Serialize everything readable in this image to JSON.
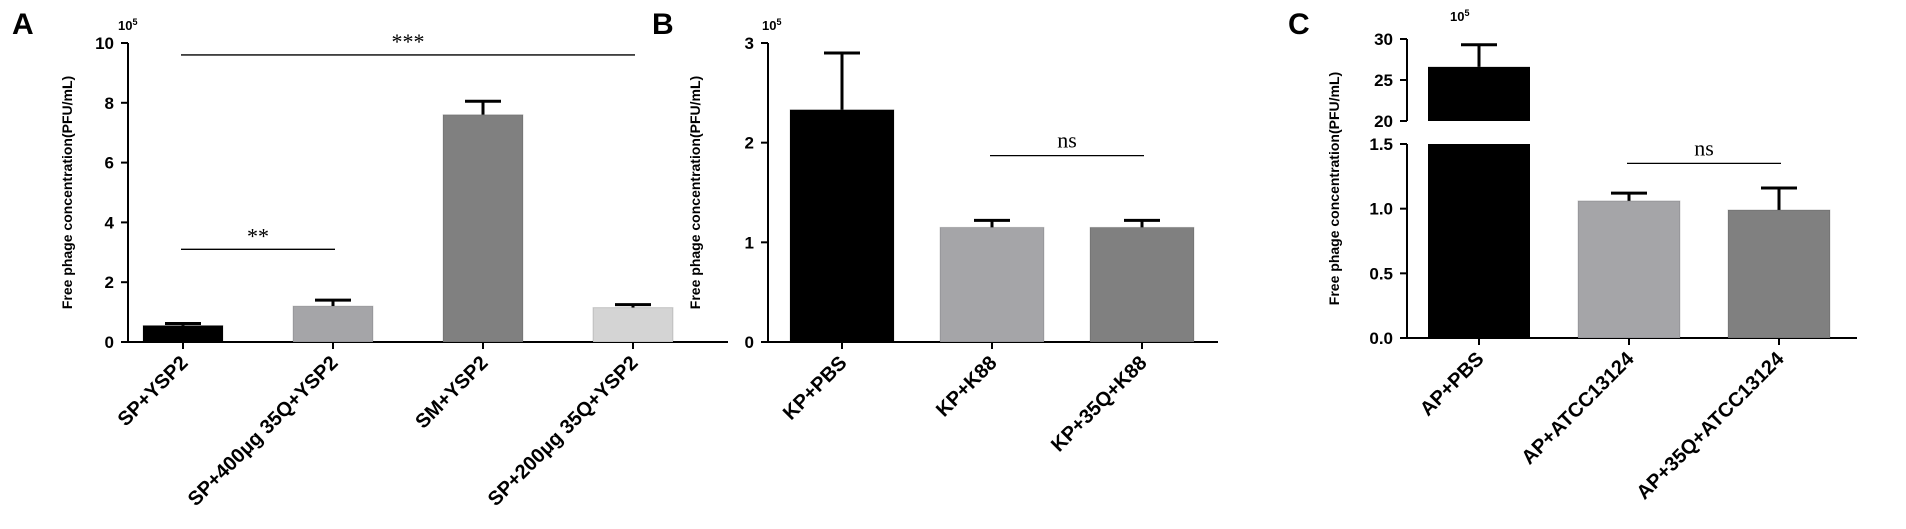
{
  "chart_data": [
    {
      "panel": "A",
      "type": "bar",
      "exponent_label": "10",
      "exponent_power": "5",
      "ylabel": "Free phage concentration(PFU/mL)",
      "ylim": [
        0,
        10
      ],
      "yticks": [
        "0",
        "2",
        "4",
        "6",
        "8",
        "10"
      ],
      "categories": [
        "SP+YSP2",
        "SP+400μg 35Q+YSP2",
        "SM+YSP2",
        "SP+200μg 35Q+YSP2"
      ],
      "values": [
        0.55,
        1.2,
        7.6,
        1.15
      ],
      "errors": [
        0.07,
        0.2,
        0.45,
        0.1
      ],
      "colors": [
        "#000000",
        "#a5a5a8",
        "#808080",
        "#d4d4d4"
      ],
      "significance": [
        {
          "from": 0,
          "to": 1,
          "label": "**",
          "y": 3.1
        },
        {
          "from": 0,
          "to": 3,
          "label": "***",
          "y": 9.6
        }
      ]
    },
    {
      "panel": "B",
      "type": "bar",
      "exponent_label": "10",
      "exponent_power": "5",
      "ylabel": "Free phage concentration(PFU/mL)",
      "ylim": [
        0,
        3
      ],
      "yticks": [
        "0",
        "1",
        "2",
        "3"
      ],
      "categories": [
        "KP+PBS",
        "KP+K88",
        "KP+35Q+K88"
      ],
      "values": [
        2.33,
        1.15,
        1.15
      ],
      "errors": [
        0.57,
        0.07,
        0.07
      ],
      "colors": [
        "#000000",
        "#a5a5a8",
        "#808080"
      ],
      "significance": [
        {
          "from": 1,
          "to": 2,
          "label": "ns",
          "y": 1.87
        }
      ]
    },
    {
      "panel": "C",
      "type": "bar",
      "exponent_label": "10",
      "exponent_power": "5",
      "ylabel": "Free phage concentration(PFU/mL)",
      "broken_axis": true,
      "ylim_lower": [
        0,
        1.5
      ],
      "ylim_upper": [
        20,
        30
      ],
      "yticks_lower": [
        "0.0",
        "0.5",
        "1.0",
        "1.5"
      ],
      "yticks_upper": [
        "20",
        "25",
        "30"
      ],
      "categories": [
        "AP+PBS",
        "AP+ATCC13124",
        "AP+35Q+ATCC13124"
      ],
      "values": [
        26.6,
        1.06,
        0.99
      ],
      "errors": [
        2.7,
        0.06,
        0.17
      ],
      "colors": [
        "#000000",
        "#a5a5a8",
        "#808080"
      ],
      "significance": [
        {
          "from": 1,
          "to": 2,
          "label": "ns",
          "y": 1.35
        }
      ]
    }
  ]
}
